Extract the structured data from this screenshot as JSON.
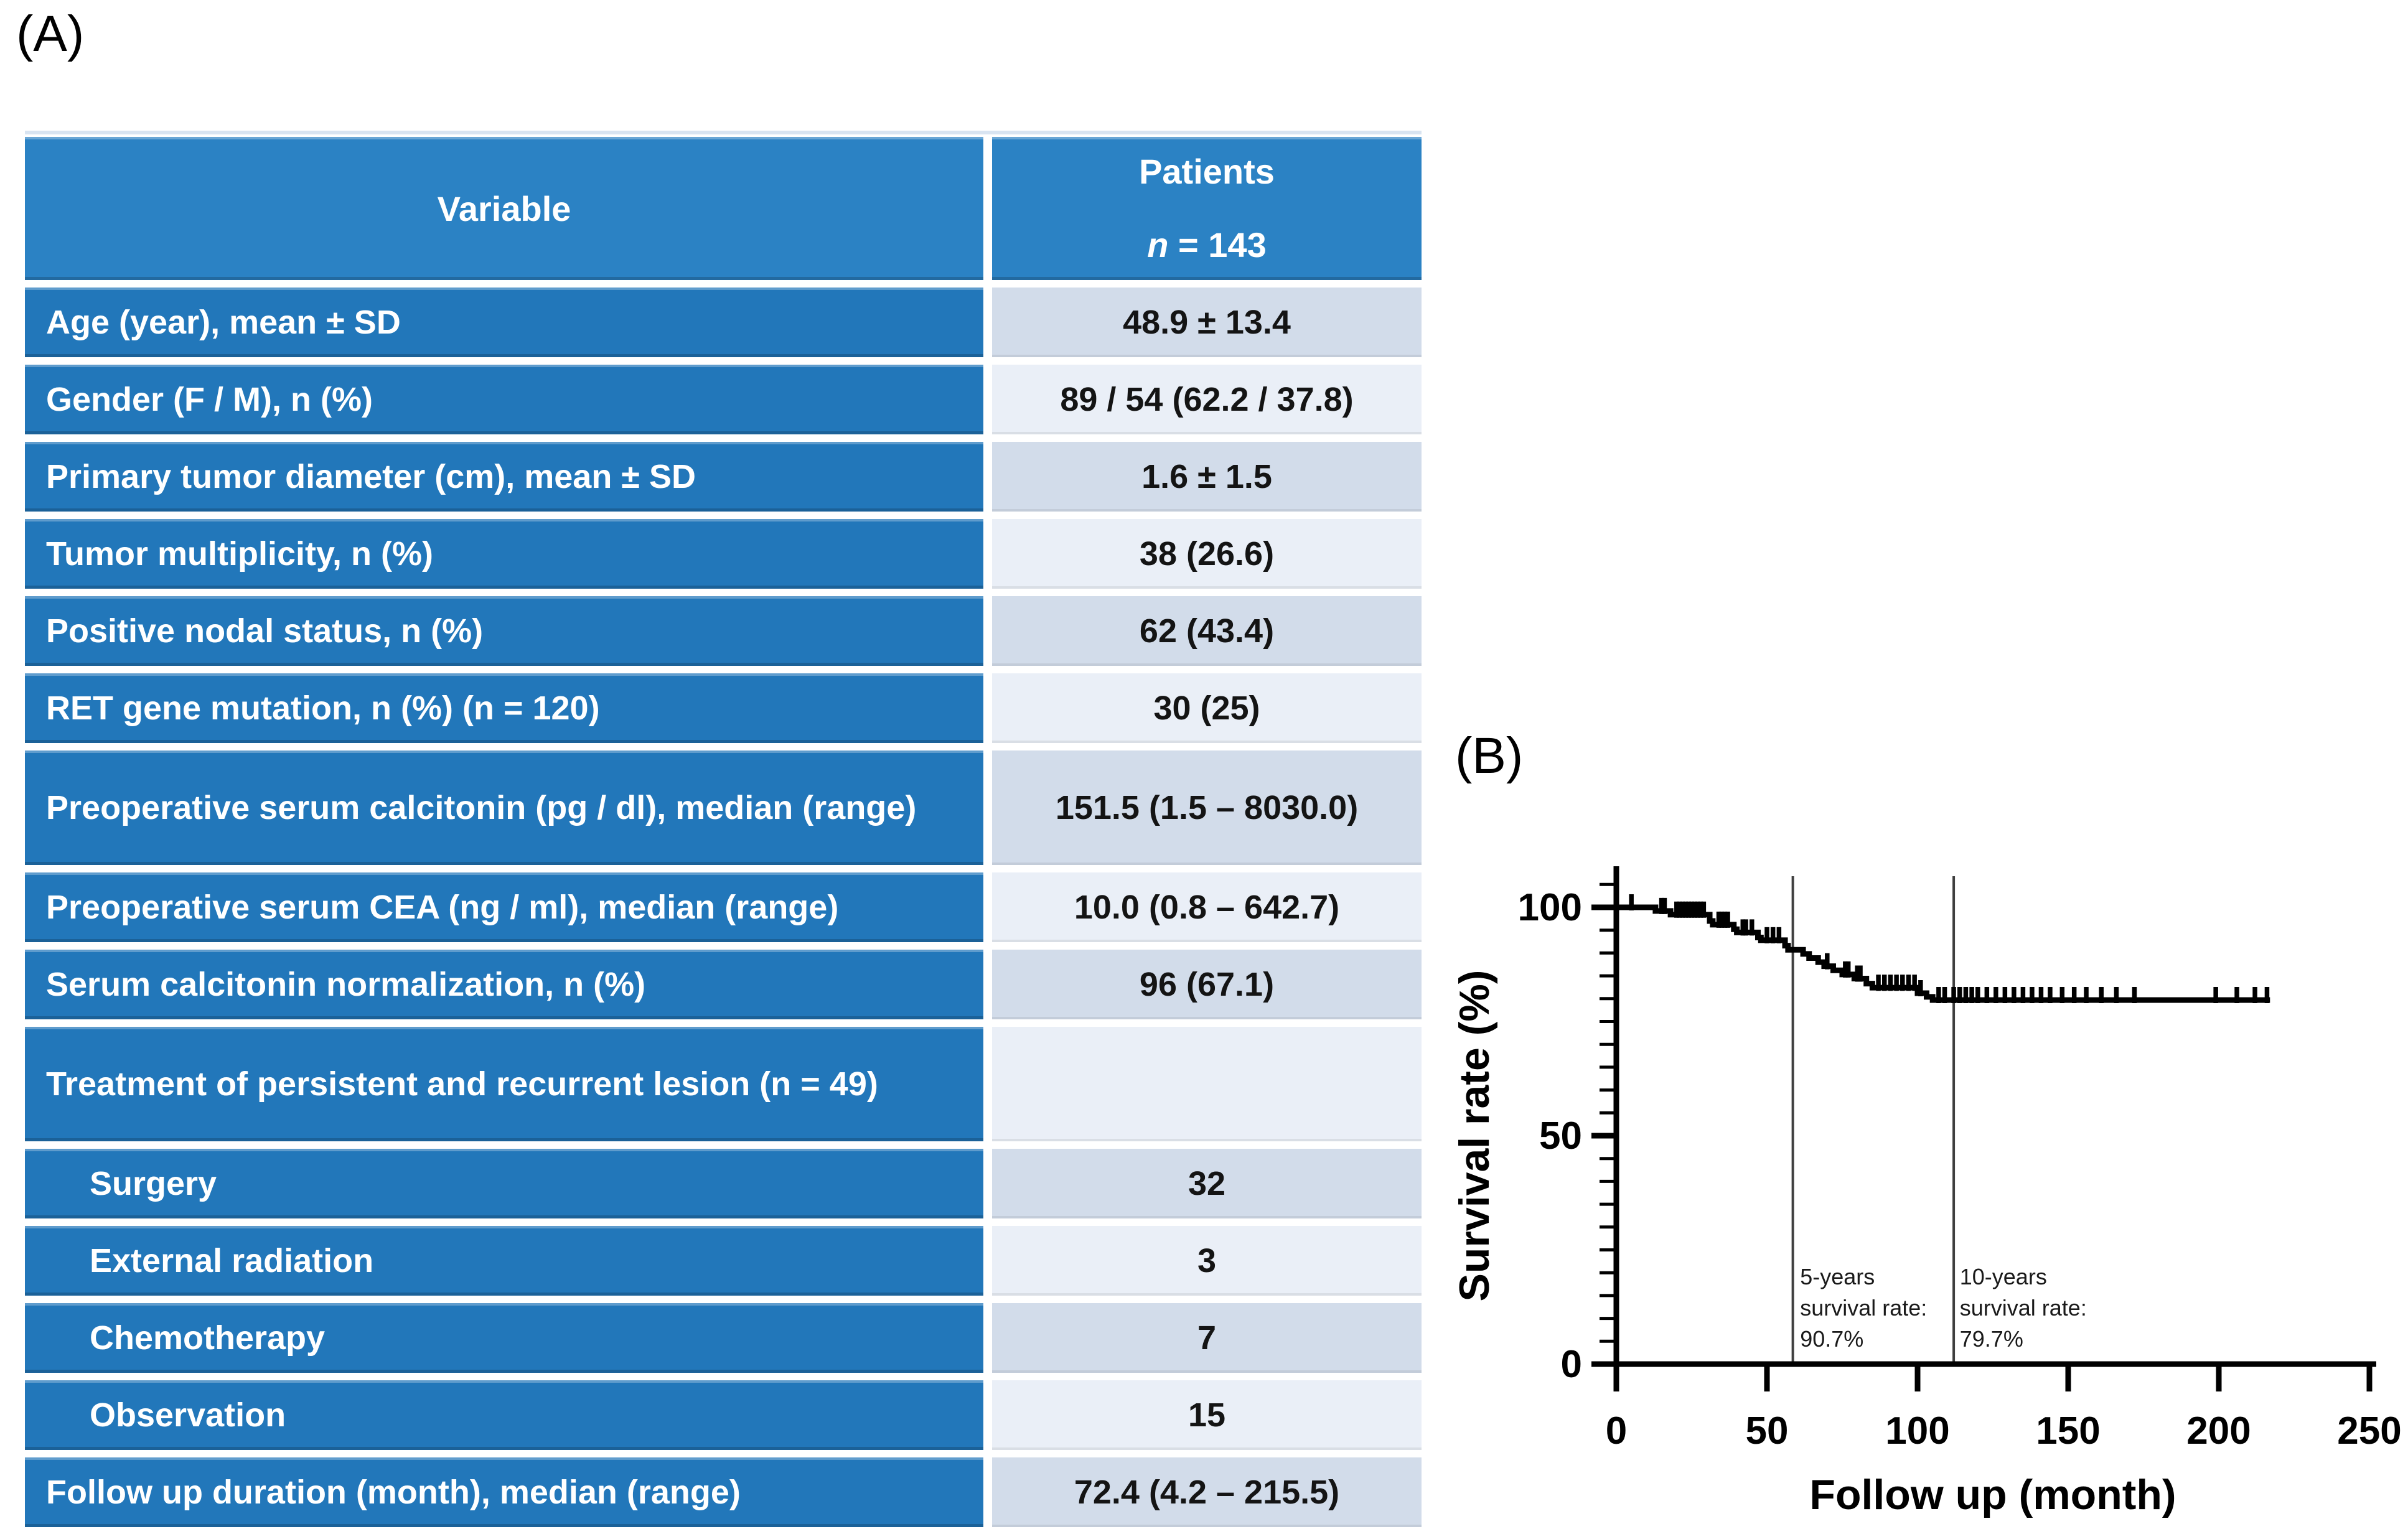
{
  "page": {
    "panel_a_label": "(A)",
    "panel_b_label": "(B)"
  },
  "table": {
    "header": {
      "col1": "Variable",
      "col2_line1": "Patients",
      "col2_n": "n",
      "col2_eq": " = 143"
    },
    "rows": [
      {
        "label": "Age (year), mean ± SD",
        "value": "48.9 ± 13.4",
        "indent": false,
        "tall": false
      },
      {
        "label": "Gender (F / M), n (%)",
        "value": "89 / 54 (62.2 / 37.8)",
        "indent": false,
        "tall": false
      },
      {
        "label": "Primary tumor diameter (cm), mean ± SD",
        "value": "1.6 ± 1.5",
        "indent": false,
        "tall": false
      },
      {
        "label": "Tumor multiplicity, n (%)",
        "value": "38 (26.6)",
        "indent": false,
        "tall": false
      },
      {
        "label": "Positive nodal status, n (%)",
        "value": "62 (43.4)",
        "indent": false,
        "tall": false
      },
      {
        "label": "RET gene mutation, n (%) (n = 120)",
        "value": "30 (25)",
        "indent": false,
        "tall": false
      },
      {
        "label": "Preoperative serum calcitonin (pg / dl), median (range)",
        "value": "151.5 (1.5 – 8030.0)",
        "indent": false,
        "tall": true
      },
      {
        "label": "Preoperative serum CEA (ng / ml), median (range)",
        "value": "10.0 (0.8 – 642.7)",
        "indent": false,
        "tall": false
      },
      {
        "label": "Serum calcitonin normalization, n (%)",
        "value": "96 (67.1)",
        "indent": false,
        "tall": false
      },
      {
        "label": "Treatment of persistent and recurrent lesion (n = 49)",
        "value": "",
        "indent": false,
        "tall": true
      },
      {
        "label": "Surgery",
        "value": "32",
        "indent": true,
        "tall": false
      },
      {
        "label": "External radiation",
        "value": "3",
        "indent": true,
        "tall": false
      },
      {
        "label": "Chemotherapy",
        "value": "7",
        "indent": true,
        "tall": false
      },
      {
        "label": "Observation",
        "value": "15",
        "indent": true,
        "tall": false
      },
      {
        "label": "Follow up duration (month), median (range)",
        "value": "72.4 (4.2 – 215.5)",
        "indent": false,
        "tall": false
      }
    ]
  },
  "chart_data": {
    "type": "line",
    "subtype": "kaplan-meier-step",
    "xlabel": "Follow up (month)",
    "ylabel": "Survival rate (%)",
    "xlim": [
      0,
      250
    ],
    "ylim": [
      0,
      110
    ],
    "x_ticks": [
      0,
      50,
      100,
      150,
      200,
      250
    ],
    "y_ticks": [
      0,
      50,
      100
    ],
    "y_minor_step": 5,
    "y_minor_max": 105,
    "grid": false,
    "legend": "none",
    "curve_start": [
      0,
      100
    ],
    "curve_end_month": 217,
    "km_steps": [
      [
        13,
        99.2
      ],
      [
        18,
        98.4
      ],
      [
        31,
        97.0
      ],
      [
        32,
        96.2
      ],
      [
        39,
        95.2
      ],
      [
        40,
        94.5
      ],
      [
        47,
        93.4
      ],
      [
        48,
        92.8
      ],
      [
        56,
        91.6
      ],
      [
        57,
        90.7
      ],
      [
        62,
        89.8
      ],
      [
        64,
        88.9
      ],
      [
        67,
        88.0
      ],
      [
        69,
        87.1
      ],
      [
        72,
        86.2
      ],
      [
        75,
        85.3
      ],
      [
        79,
        84.4
      ],
      [
        83,
        83.3
      ],
      [
        85,
        82.4
      ],
      [
        100,
        81.2
      ],
      [
        103,
        80.4
      ],
      [
        105,
        79.7
      ]
    ],
    "censor_marks": [
      [
        5,
        100
      ],
      [
        15,
        99.2
      ],
      [
        16,
        99.2
      ],
      [
        20,
        98.4
      ],
      [
        21,
        98.4
      ],
      [
        22,
        98.4
      ],
      [
        23,
        98.4
      ],
      [
        24,
        98.4
      ],
      [
        25,
        98.4
      ],
      [
        26,
        98.4
      ],
      [
        27,
        98.4
      ],
      [
        28,
        98.4
      ],
      [
        29,
        98.4
      ],
      [
        34,
        96.2
      ],
      [
        35,
        96.2
      ],
      [
        36,
        96.2
      ],
      [
        37,
        96.2
      ],
      [
        42,
        94.5
      ],
      [
        43,
        94.5
      ],
      [
        45,
        94.5
      ],
      [
        50,
        92.8
      ],
      [
        52,
        92.8
      ],
      [
        54,
        92.8
      ],
      [
        70,
        87.1
      ],
      [
        76,
        85.3
      ],
      [
        77,
        85.3
      ],
      [
        80,
        84.4
      ],
      [
        81,
        84.4
      ],
      [
        87,
        82.4
      ],
      [
        89,
        82.4
      ],
      [
        91,
        82.4
      ],
      [
        93,
        82.4
      ],
      [
        95,
        82.4
      ],
      [
        97,
        82.4
      ],
      [
        99,
        82.4
      ],
      [
        101,
        81.2
      ],
      [
        107,
        79.7
      ],
      [
        109,
        79.7
      ],
      [
        112,
        79.7
      ],
      [
        114,
        79.7
      ],
      [
        116,
        79.7
      ],
      [
        118,
        79.7
      ],
      [
        120,
        79.7
      ],
      [
        123,
        79.7
      ],
      [
        126,
        79.7
      ],
      [
        129,
        79.7
      ],
      [
        132,
        79.7
      ],
      [
        135,
        79.7
      ],
      [
        138,
        79.7
      ],
      [
        141,
        79.7
      ],
      [
        144,
        79.7
      ],
      [
        148,
        79.7
      ],
      [
        152,
        79.7
      ],
      [
        156,
        79.7
      ],
      [
        161,
        79.7
      ],
      [
        166,
        79.7
      ],
      [
        172,
        79.7
      ],
      [
        199,
        79.7
      ],
      [
        206,
        79.7
      ],
      [
        212,
        79.7
      ],
      [
        216,
        79.7
      ]
    ],
    "ref_lines": [
      {
        "x": 58.6
      },
      {
        "x": 112
      }
    ],
    "annotations": [
      {
        "x_month": 61,
        "lines": [
          "5-years",
          "survival rate:",
          "90.7%"
        ]
      },
      {
        "x_month": 114,
        "lines": [
          "10-years",
          "survival rate:",
          "79.7%"
        ]
      }
    ],
    "colors": {
      "curve": "#000000",
      "ref_line": "#3f3f3f",
      "axis": "#000000"
    }
  }
}
